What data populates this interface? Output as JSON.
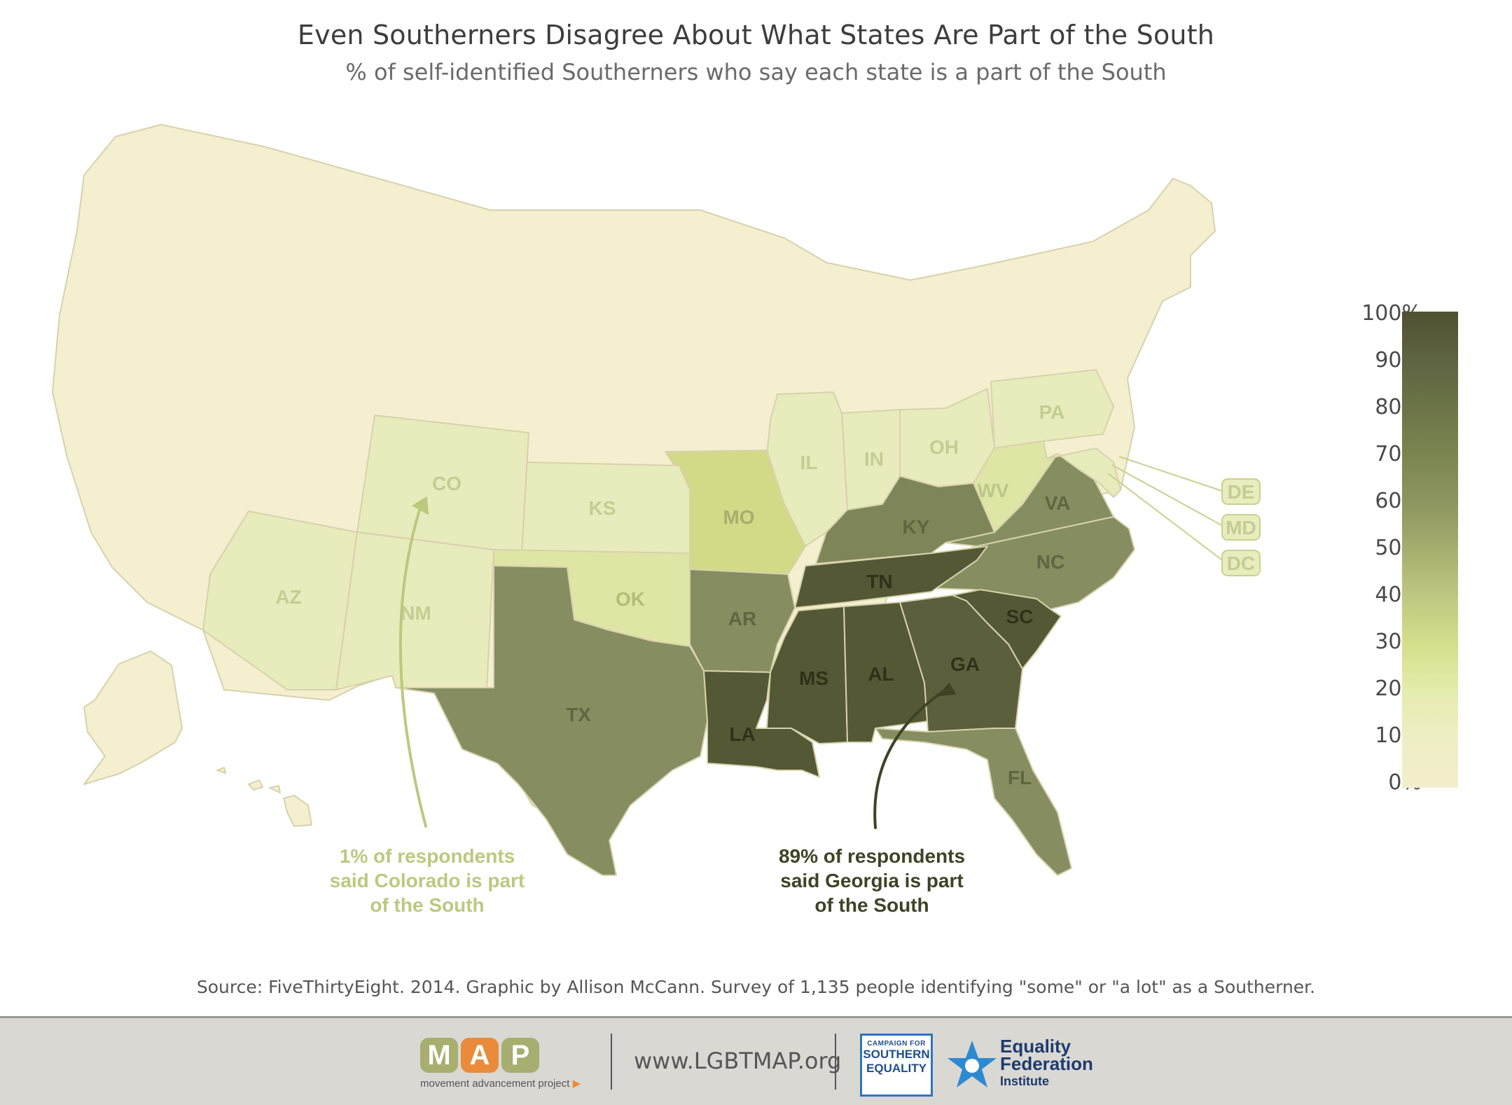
{
  "title": "Even Southerners Disagree About What States Are Part of the South",
  "subtitle": "% of self-identified Southerners who say each state is a part of the South",
  "colors": {
    "state_0pct": "#f4efce",
    "state_border": "#d7d2ad",
    "co": "#e8ebbb",
    "ok": "#dfe5a4",
    "mo": "#d2da88",
    "tx": "#858d61",
    "ky": "#7e8558",
    "tn": "#545834",
    "ga": "#5b5f3b",
    "annotation_light": "#bdc87f",
    "annotation_dark": "#3f4325"
  },
  "states": [
    {
      "abbr": "CO"
    },
    {
      "abbr": "KS"
    },
    {
      "abbr": "MO"
    },
    {
      "abbr": "IL"
    },
    {
      "abbr": "IN"
    },
    {
      "abbr": "OH"
    },
    {
      "abbr": "PA"
    },
    {
      "abbr": "WV"
    },
    {
      "abbr": "VA"
    },
    {
      "abbr": "KY"
    },
    {
      "abbr": "NC"
    },
    {
      "abbr": "TN"
    },
    {
      "abbr": "SC"
    },
    {
      "abbr": "GA"
    },
    {
      "abbr": "AL"
    },
    {
      "abbr": "MS"
    },
    {
      "abbr": "AR"
    },
    {
      "abbr": "LA"
    },
    {
      "abbr": "TX"
    },
    {
      "abbr": "OK"
    },
    {
      "abbr": "NM"
    },
    {
      "abbr": "AZ"
    },
    {
      "abbr": "FL"
    },
    {
      "abbr": "DE"
    },
    {
      "abbr": "MD"
    },
    {
      "abbr": "DC"
    }
  ],
  "annotations": {
    "colorado": [
      "1% of respondents",
      "said Colorado is part",
      "of the South"
    ],
    "georgia": [
      "89% of respondents",
      "said Georgia is part",
      "of the South"
    ]
  },
  "legend": {
    "ticks": [
      "100%",
      "90%",
      "80%",
      "70%",
      "60%",
      "50%",
      "40%",
      "30%",
      "20%",
      "10%",
      "0%"
    ]
  },
  "source": "Source: FiveThirtyEight. 2014. Graphic by Allison McCann. Survey of 1,135 people identifying \"some\" or \"a lot\" as a Southerner.",
  "footer": {
    "map_letters": [
      "M",
      "A",
      "P"
    ],
    "map_tagline": "movement advancement project",
    "website": "www.LGBTMAP.org",
    "cse": {
      "small": "CAMPAIGN FOR",
      "line1": "SOUTHERN",
      "line2": "EQUALITY"
    },
    "efi": {
      "line1": "Equality",
      "line2": "Federation",
      "line3": "Institute"
    }
  }
}
